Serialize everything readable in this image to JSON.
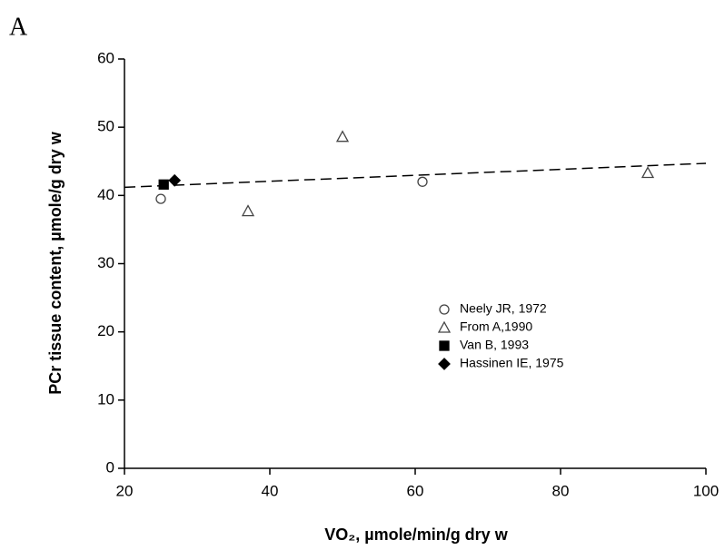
{
  "chart_data": {
    "type": "scatter",
    "panel_label": "A",
    "x_label": "VO₂, µmole/min/g dry w",
    "y_label": "PCr tissue content, µmole/g dry w",
    "xlim": [
      20,
      100
    ],
    "xticks": [
      20,
      40,
      60,
      80,
      100
    ],
    "ylim": [
      0,
      60
    ],
    "yticks": [
      0,
      10,
      20,
      30,
      40,
      50,
      60
    ],
    "series": [
      {
        "name": "Neely JR, 1972",
        "marker": "circle",
        "filled": false,
        "color": "#444444",
        "x": [
          25,
          61
        ],
        "values": [
          39.5,
          42
        ]
      },
      {
        "name": "From A,1990",
        "marker": "triangle",
        "filled": false,
        "color": "#444444",
        "x": [
          37,
          50,
          92
        ],
        "values": [
          37.7,
          48.6,
          43.3
        ]
      },
      {
        "name": "Van B, 1993",
        "marker": "square",
        "filled": true,
        "color": "#000000",
        "x": [
          25.4
        ],
        "values": [
          41.6
        ]
      },
      {
        "name": "Hassinen IE, 1975",
        "marker": "diamond",
        "filled": true,
        "color": "#000000",
        "x": [
          26.9
        ],
        "values": [
          42.2
        ]
      }
    ],
    "trendline": {
      "x": [
        20,
        100
      ],
      "values": [
        41.2,
        44.7
      ]
    }
  }
}
